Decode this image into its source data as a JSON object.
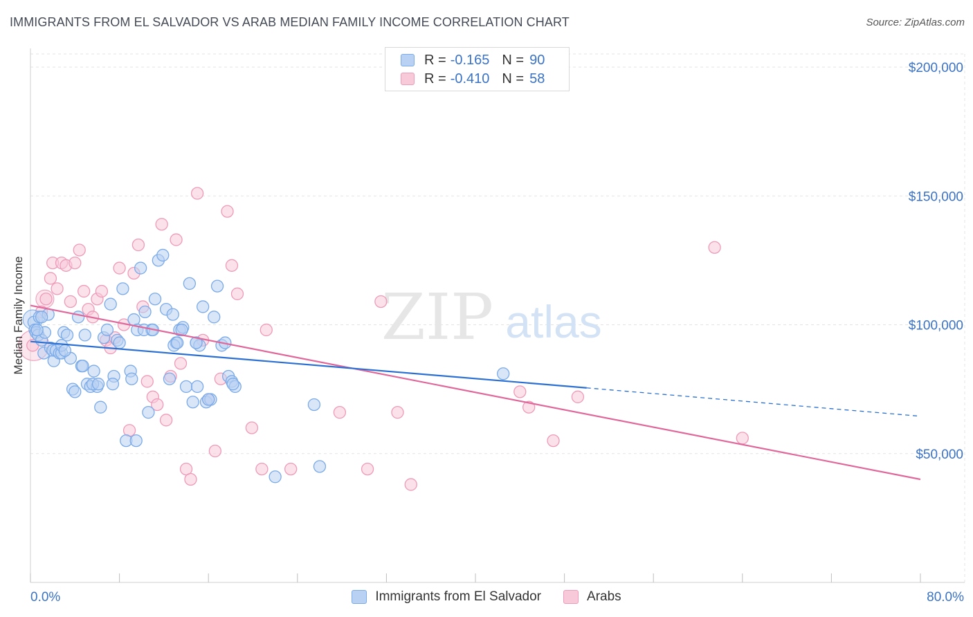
{
  "title": "IMMIGRANTS FROM EL SALVADOR VS ARAB MEDIAN FAMILY INCOME CORRELATION CHART",
  "source": "Source: ZipAtlas.com",
  "watermark": {
    "zip": "ZIP",
    "atlas": "atlas"
  },
  "legend": {
    "r_label": "R =",
    "n_label": "N =",
    "series": [
      {
        "r": "-0.165",
        "n": "90"
      },
      {
        "r": "-0.410",
        "n": "58"
      }
    ]
  },
  "chart_data": {
    "type": "scatter",
    "title": "IMMIGRANTS FROM EL SALVADOR VS ARAB MEDIAN FAMILY INCOME CORRELATION CHART",
    "xlabel": "",
    "ylabel": "Median Family Income",
    "xlim": [
      0,
      80
    ],
    "ylim": [
      0,
      210000
    ],
    "x_tick_labels": [
      "0.0%",
      "80.0%"
    ],
    "y_ticks": [
      50000,
      100000,
      150000,
      200000
    ],
    "y_tick_labels": [
      "$50,000",
      "$100,000",
      "$150,000",
      "$200,000"
    ],
    "series": [
      {
        "name": "Immigrants from El Salvador",
        "color": "#7aaae8",
        "fill": "#b9d1f3",
        "line_color": "#2a6fd1",
        "trend": {
          "x0": 0,
          "y0": 93500,
          "x1": 50,
          "y1": 75500,
          "dashed_to": 80,
          "y_dashed_end": 64500
        },
        "points": [
          [
            0.3,
            101000
          ],
          [
            0.4,
            98000
          ],
          [
            0.5,
            97000
          ],
          [
            0.7,
            96000
          ],
          [
            0.8,
            103000
          ],
          [
            1.0,
            94000
          ],
          [
            1.2,
            89000
          ],
          [
            1.3,
            97000
          ],
          [
            1.6,
            104000
          ],
          [
            1.8,
            91000
          ],
          [
            2.0,
            90000
          ],
          [
            2.1,
            86000
          ],
          [
            2.3,
            90000
          ],
          [
            2.6,
            89000
          ],
          [
            2.8,
            89000
          ],
          [
            3.0,
            97000
          ],
          [
            3.3,
            96000
          ],
          [
            3.6,
            87000
          ],
          [
            3.8,
            75000
          ],
          [
            4.0,
            74000
          ],
          [
            4.3,
            103000
          ],
          [
            4.6,
            84000
          ],
          [
            4.9,
            96000
          ],
          [
            5.1,
            77000
          ],
          [
            5.4,
            76000
          ],
          [
            5.7,
            82000
          ],
          [
            6.0,
            76000
          ],
          [
            6.3,
            68000
          ],
          [
            6.6,
            95000
          ],
          [
            6.9,
            98000
          ],
          [
            7.2,
            108000
          ],
          [
            7.5,
            80000
          ],
          [
            7.8,
            94000
          ],
          [
            8.0,
            93000
          ],
          [
            8.3,
            114000
          ],
          [
            8.6,
            55000
          ],
          [
            9.0,
            82000
          ],
          [
            9.3,
            102000
          ],
          [
            9.6,
            98000
          ],
          [
            9.9,
            122000
          ],
          [
            10.3,
            105000
          ],
          [
            10.6,
            66000
          ],
          [
            10.9,
            98000
          ],
          [
            11.2,
            110000
          ],
          [
            11.5,
            125000
          ],
          [
            11.9,
            127000
          ],
          [
            12.2,
            106000
          ],
          [
            12.5,
            79000
          ],
          [
            12.8,
            104000
          ],
          [
            13.1,
            93000
          ],
          [
            13.4,
            98000
          ],
          [
            13.7,
            99000
          ],
          [
            14.0,
            76000
          ],
          [
            14.3,
            116000
          ],
          [
            14.6,
            70000
          ],
          [
            14.9,
            93000
          ],
          [
            15.2,
            92000
          ],
          [
            15.5,
            107000
          ],
          [
            15.8,
            70000
          ],
          [
            16.2,
            71000
          ],
          [
            16.5,
            103000
          ],
          [
            16.8,
            115000
          ],
          [
            17.2,
            92000
          ],
          [
            17.5,
            93000
          ],
          [
            17.8,
            80000
          ],
          [
            18.1,
            78000
          ],
          [
            18.4,
            76000
          ],
          [
            2.8,
            92000
          ],
          [
            3.1,
            90000
          ],
          [
            4.7,
            84000
          ],
          [
            5.6,
            77000
          ],
          [
            6.1,
            77000
          ],
          [
            7.4,
            77000
          ],
          [
            9.1,
            79000
          ],
          [
            9.5,
            55000
          ],
          [
            10.2,
            98000
          ],
          [
            11.0,
            98000
          ],
          [
            12.9,
            92000
          ],
          [
            13.2,
            93000
          ],
          [
            13.6,
            98000
          ],
          [
            14.9,
            93000
          ],
          [
            15.0,
            76000
          ],
          [
            16.0,
            71000
          ],
          [
            18.2,
            77000
          ],
          [
            22.0,
            41000
          ],
          [
            25.5,
            69000
          ],
          [
            26.0,
            45000
          ],
          [
            42.5,
            81000
          ],
          [
            1.0,
            103000
          ],
          [
            0.6,
            98000
          ]
        ]
      },
      {
        "name": "Arabs",
        "color": "#ee9ab8",
        "fill": "#f8c9d9",
        "line_color": "#e0679a",
        "trend": {
          "x0": 0,
          "y0": 107500,
          "x1": 80,
          "y1": 40000
        },
        "points": [
          [
            0.2,
            92000
          ],
          [
            1.0,
            105000
          ],
          [
            1.4,
            110000
          ],
          [
            1.8,
            118000
          ],
          [
            2.0,
            124000
          ],
          [
            2.4,
            114000
          ],
          [
            2.8,
            124000
          ],
          [
            3.2,
            123000
          ],
          [
            3.6,
            109000
          ],
          [
            4.0,
            124000
          ],
          [
            4.4,
            129000
          ],
          [
            4.8,
            113000
          ],
          [
            5.2,
            106000
          ],
          [
            5.6,
            103000
          ],
          [
            6.0,
            110000
          ],
          [
            6.4,
            113000
          ],
          [
            6.8,
            94000
          ],
          [
            7.2,
            91000
          ],
          [
            7.6,
            95000
          ],
          [
            8.0,
            122000
          ],
          [
            8.4,
            100000
          ],
          [
            8.9,
            59000
          ],
          [
            9.3,
            120000
          ],
          [
            9.7,
            131000
          ],
          [
            10.1,
            107000
          ],
          [
            10.5,
            78000
          ],
          [
            11.0,
            72000
          ],
          [
            11.4,
            69000
          ],
          [
            11.8,
            139000
          ],
          [
            12.2,
            63000
          ],
          [
            12.6,
            80000
          ],
          [
            13.1,
            133000
          ],
          [
            13.5,
            85000
          ],
          [
            14.0,
            44000
          ],
          [
            14.4,
            40000
          ],
          [
            15.0,
            151000
          ],
          [
            15.5,
            94000
          ],
          [
            16.0,
            71000
          ],
          [
            16.6,
            51000
          ],
          [
            17.1,
            79000
          ],
          [
            17.7,
            144000
          ],
          [
            18.1,
            123000
          ],
          [
            18.6,
            112000
          ],
          [
            19.9,
            60000
          ],
          [
            20.8,
            44000
          ],
          [
            21.2,
            98000
          ],
          [
            23.4,
            44000
          ],
          [
            27.8,
            66000
          ],
          [
            30.3,
            44000
          ],
          [
            31.5,
            109000
          ],
          [
            33.0,
            66000
          ],
          [
            34.2,
            38000
          ],
          [
            44.0,
            74000
          ],
          [
            44.8,
            68000
          ],
          [
            47.0,
            55000
          ],
          [
            49.2,
            72000
          ],
          [
            61.5,
            130000
          ],
          [
            64.0,
            56000
          ]
        ]
      }
    ]
  }
}
